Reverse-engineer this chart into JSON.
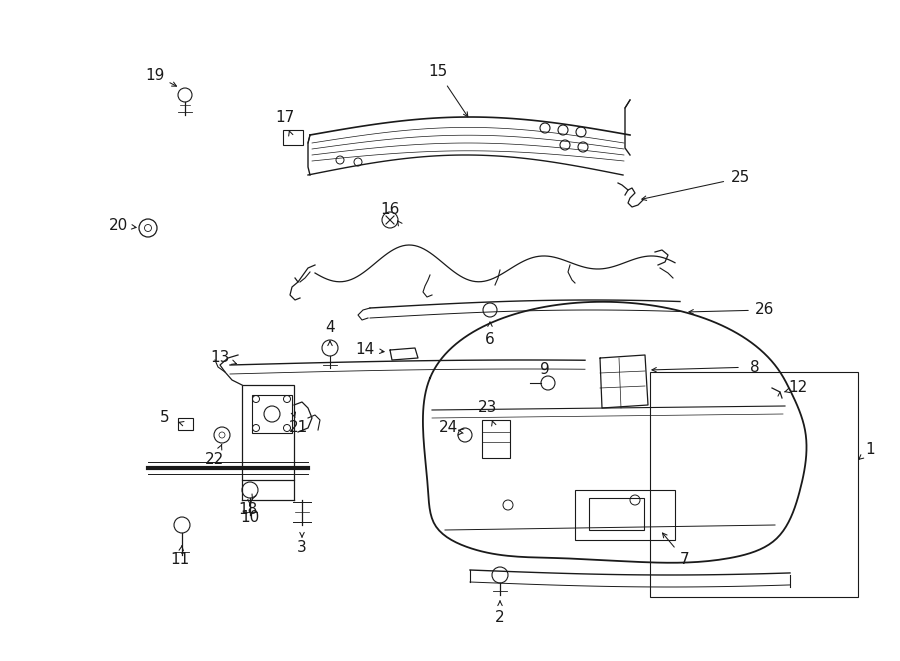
{
  "bg_color": "#ffffff",
  "line_color": "#1a1a1a",
  "text_color": "#1a1a1a",
  "fig_width": 9.0,
  "fig_height": 6.61,
  "dpi": 100
}
